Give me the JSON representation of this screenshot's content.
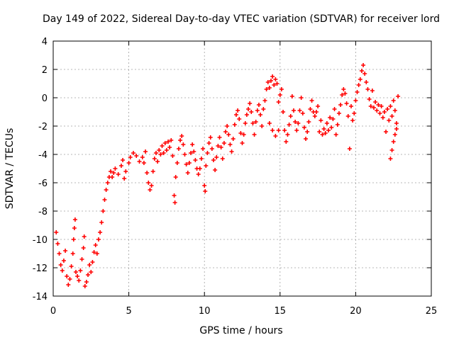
{
  "chart_data": {
    "type": "scatter",
    "title": "Day 149 of 2022, Sidereal Day-to-day VTEC variation (SDTVAR) for receiver lord",
    "xlabel": "GPS time / hours",
    "ylabel": "SDTVAR / TECUs",
    "xlim": [
      0,
      25
    ],
    "ylim": [
      -14,
      4
    ],
    "xticks": [
      "0",
      "5",
      "10",
      "15",
      "20",
      "25"
    ],
    "yticks": [
      "4",
      "2",
      "0",
      "-2",
      "-4",
      "-6",
      "-8",
      "-10",
      "-12",
      "-14"
    ],
    "grid": true,
    "marker": "plus",
    "color": "#ff0000",
    "series": [
      {
        "name": "SDTVAR",
        "points": [
          [
            0.2,
            -9.5
          ],
          [
            0.3,
            -10.3
          ],
          [
            0.4,
            -11.0
          ],
          [
            0.5,
            -11.8
          ],
          [
            0.6,
            -12.2
          ],
          [
            0.7,
            -11.5
          ],
          [
            0.8,
            -10.8
          ],
          [
            0.9,
            -12.6
          ],
          [
            1.0,
            -13.2
          ],
          [
            1.1,
            -12.8
          ],
          [
            1.2,
            -11.9
          ],
          [
            1.3,
            -11.0
          ],
          [
            1.35,
            -10.0
          ],
          [
            1.4,
            -9.2
          ],
          [
            1.45,
            -8.6
          ],
          [
            1.5,
            -12.3
          ],
          [
            1.6,
            -12.6
          ],
          [
            1.7,
            -12.9
          ],
          [
            1.8,
            -12.2
          ],
          [
            1.9,
            -11.4
          ],
          [
            2.0,
            -10.6
          ],
          [
            2.05,
            -9.8
          ],
          [
            2.1,
            -13.3
          ],
          [
            2.2,
            -13.0
          ],
          [
            2.3,
            -12.5
          ],
          [
            2.4,
            -11.8
          ],
          [
            2.5,
            -12.3
          ],
          [
            2.6,
            -11.6
          ],
          [
            2.7,
            -10.9
          ],
          [
            2.8,
            -10.4
          ],
          [
            2.9,
            -11.0
          ],
          [
            3.0,
            -10.0
          ],
          [
            3.1,
            -9.5
          ],
          [
            3.2,
            -8.8
          ],
          [
            3.3,
            -8.0
          ],
          [
            3.4,
            -7.2
          ],
          [
            3.5,
            -6.5
          ],
          [
            3.6,
            -6.0
          ],
          [
            3.7,
            -5.6
          ],
          [
            3.8,
            -5.2
          ],
          [
            3.9,
            -5.6
          ],
          [
            4.0,
            -5.3
          ],
          [
            4.1,
            -5.0
          ],
          [
            4.3,
            -5.4
          ],
          [
            4.5,
            -4.8
          ],
          [
            4.6,
            -4.4
          ],
          [
            4.7,
            -5.7
          ],
          [
            4.8,
            -5.2
          ],
          [
            5.0,
            -4.6
          ],
          [
            5.1,
            -4.2
          ],
          [
            5.3,
            -3.9
          ],
          [
            5.5,
            -4.1
          ],
          [
            5.7,
            -4.5
          ],
          [
            5.9,
            -4.2
          ],
          [
            6.0,
            -4.6
          ],
          [
            6.1,
            -3.8
          ],
          [
            6.2,
            -5.3
          ],
          [
            6.3,
            -6.0
          ],
          [
            6.4,
            -6.5
          ],
          [
            6.5,
            -6.2
          ],
          [
            6.6,
            -5.2
          ],
          [
            6.7,
            -4.3
          ],
          [
            6.8,
            -3.9
          ],
          [
            6.9,
            -4.5
          ],
          [
            7.0,
            -3.7
          ],
          [
            7.1,
            -4.0
          ],
          [
            7.2,
            -3.4
          ],
          [
            7.3,
            -3.9
          ],
          [
            7.4,
            -3.2
          ],
          [
            7.5,
            -3.7
          ],
          [
            7.6,
            -3.1
          ],
          [
            7.7,
            -3.5
          ],
          [
            7.8,
            -3.0
          ],
          [
            7.9,
            -4.1
          ],
          [
            8.0,
            -6.9
          ],
          [
            8.05,
            -7.4
          ],
          [
            8.1,
            -5.6
          ],
          [
            8.2,
            -4.6
          ],
          [
            8.3,
            -3.6
          ],
          [
            8.4,
            -3.0
          ],
          [
            8.5,
            -2.7
          ],
          [
            8.6,
            -3.3
          ],
          [
            8.7,
            -4.0
          ],
          [
            8.8,
            -4.7
          ],
          [
            8.9,
            -5.3
          ],
          [
            9.0,
            -4.6
          ],
          [
            9.1,
            -3.9
          ],
          [
            9.2,
            -3.3
          ],
          [
            9.3,
            -3.8
          ],
          [
            9.4,
            -4.4
          ],
          [
            9.5,
            -5.0
          ],
          [
            9.6,
            -5.4
          ],
          [
            9.7,
            -5.0
          ],
          [
            9.8,
            -4.3
          ],
          [
            9.9,
            -3.6
          ],
          [
            10.0,
            -6.2
          ],
          [
            10.05,
            -6.6
          ],
          [
            10.1,
            -4.8
          ],
          [
            10.2,
            -3.9
          ],
          [
            10.3,
            -3.2
          ],
          [
            10.4,
            -2.8
          ],
          [
            10.5,
            -3.6
          ],
          [
            10.6,
            -4.4
          ],
          [
            10.7,
            -5.1
          ],
          [
            10.8,
            -4.2
          ],
          [
            10.9,
            -3.4
          ],
          [
            11.0,
            -2.8
          ],
          [
            11.1,
            -3.5
          ],
          [
            11.2,
            -4.3
          ],
          [
            11.3,
            -3.2
          ],
          [
            11.4,
            -2.4
          ],
          [
            11.5,
            -2.0
          ],
          [
            11.6,
            -2.6
          ],
          [
            11.7,
            -3.3
          ],
          [
            11.8,
            -3.8
          ],
          [
            11.9,
            -2.9
          ],
          [
            12.0,
            -1.9
          ],
          [
            12.1,
            -1.2
          ],
          [
            12.2,
            -0.9
          ],
          [
            12.3,
            -1.5
          ],
          [
            12.4,
            -2.5
          ],
          [
            12.5,
            -3.2
          ],
          [
            12.6,
            -2.6
          ],
          [
            12.7,
            -1.8
          ],
          [
            12.8,
            -1.2
          ],
          [
            12.9,
            -0.8
          ],
          [
            13.0,
            -0.4
          ],
          [
            13.1,
            -1.0
          ],
          [
            13.2,
            -1.8
          ],
          [
            13.3,
            -2.6
          ],
          [
            13.4,
            -1.7
          ],
          [
            13.5,
            -0.9
          ],
          [
            13.6,
            -0.5
          ],
          [
            13.7,
            -1.2
          ],
          [
            13.8,
            -2.0
          ],
          [
            13.9,
            -0.8
          ],
          [
            14.0,
            -0.2
          ],
          [
            14.1,
            0.6
          ],
          [
            14.2,
            1.1
          ],
          [
            14.3,
            0.7
          ],
          [
            14.4,
            1.2
          ],
          [
            14.5,
            1.5
          ],
          [
            14.6,
            0.9
          ],
          [
            14.7,
            1.3
          ],
          [
            14.8,
            1.0
          ],
          [
            14.9,
            -0.3
          ],
          [
            14.3,
            -1.8
          ],
          [
            14.5,
            -2.3
          ],
          [
            14.7,
            -2.7
          ],
          [
            14.9,
            -2.3
          ],
          [
            15.0,
            0.2
          ],
          [
            15.1,
            0.6
          ],
          [
            15.2,
            -1.0
          ],
          [
            15.3,
            -2.3
          ],
          [
            15.4,
            -3.1
          ],
          [
            15.5,
            -2.6
          ],
          [
            15.6,
            -1.9
          ],
          [
            15.7,
            -1.3
          ],
          [
            15.8,
            0.1
          ],
          [
            15.9,
            -0.9
          ],
          [
            16.0,
            -1.7
          ],
          [
            16.1,
            -2.3
          ],
          [
            16.2,
            -1.8
          ],
          [
            16.3,
            -0.9
          ],
          [
            16.4,
            0.0
          ],
          [
            16.5,
            -1.1
          ],
          [
            16.6,
            -2.1
          ],
          [
            16.7,
            -2.9
          ],
          [
            16.8,
            -2.4
          ],
          [
            16.9,
            -1.7
          ],
          [
            17.0,
            -0.8
          ],
          [
            17.1,
            -0.2
          ],
          [
            17.2,
            -1.0
          ],
          [
            17.3,
            -1.3
          ],
          [
            17.4,
            -1.0
          ],
          [
            17.5,
            -0.6
          ],
          [
            17.6,
            -2.4
          ],
          [
            17.7,
            -1.6
          ],
          [
            17.8,
            -2.6
          ],
          [
            17.9,
            -2.2
          ],
          [
            18.0,
            -2.5
          ],
          [
            18.1,
            -1.8
          ],
          [
            18.2,
            -2.3
          ],
          [
            18.3,
            -1.4
          ],
          [
            18.4,
            -2.1
          ],
          [
            18.5,
            -1.5
          ],
          [
            18.6,
            -0.8
          ],
          [
            18.7,
            -2.6
          ],
          [
            18.8,
            -1.9
          ],
          [
            18.9,
            -1.1
          ],
          [
            19.0,
            -0.5
          ],
          [
            19.1,
            0.2
          ],
          [
            19.2,
            0.6
          ],
          [
            19.3,
            0.3
          ],
          [
            19.4,
            -0.4
          ],
          [
            19.5,
            -1.3
          ],
          [
            19.6,
            -3.6
          ],
          [
            19.7,
            -0.6
          ],
          [
            19.8,
            -1.6
          ],
          [
            19.9,
            -1.1
          ],
          [
            20.0,
            -0.2
          ],
          [
            20.1,
            0.4
          ],
          [
            20.2,
            0.9
          ],
          [
            20.3,
            1.3
          ],
          [
            20.4,
            1.9
          ],
          [
            20.5,
            2.3
          ],
          [
            20.6,
            1.7
          ],
          [
            20.7,
            1.1
          ],
          [
            20.8,
            0.6
          ],
          [
            20.9,
            -0.1
          ],
          [
            21.0,
            -0.6
          ],
          [
            21.1,
            0.5
          ],
          [
            21.2,
            -0.7
          ],
          [
            21.3,
            -0.3
          ],
          [
            21.4,
            -0.9
          ],
          [
            21.5,
            -0.5
          ],
          [
            21.6,
            -1.1
          ],
          [
            21.7,
            -0.6
          ],
          [
            21.8,
            -1.4
          ],
          [
            21.9,
            -1.0
          ],
          [
            22.0,
            -2.4
          ],
          [
            22.1,
            -0.8
          ],
          [
            22.2,
            -1.6
          ],
          [
            22.3,
            -0.6
          ],
          [
            22.4,
            -1.3
          ],
          [
            22.5,
            -0.2
          ],
          [
            22.6,
            -0.9
          ],
          [
            22.7,
            -1.8
          ],
          [
            22.3,
            -4.3
          ],
          [
            22.4,
            -3.7
          ],
          [
            22.5,
            -3.1
          ],
          [
            22.6,
            -2.6
          ],
          [
            22.7,
            -2.2
          ],
          [
            22.8,
            0.1
          ]
        ]
      }
    ]
  }
}
